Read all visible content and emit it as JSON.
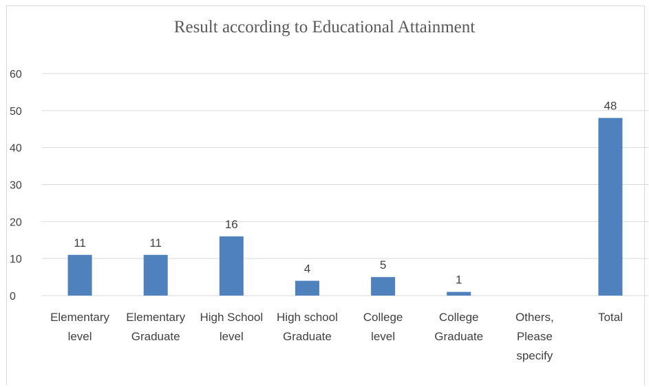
{
  "chart_data": {
    "type": "bar",
    "title": "Result according to Educational Attainment",
    "categories": [
      [
        "Elementary",
        "level"
      ],
      [
        "Elementary",
        "Graduate"
      ],
      [
        "High School",
        "level"
      ],
      [
        "High school",
        "Graduate"
      ],
      [
        "College",
        "level"
      ],
      [
        "College",
        "Graduate"
      ],
      [
        "Others,",
        "Please",
        "specify"
      ],
      [
        "Total"
      ]
    ],
    "values": [
      11,
      11,
      16,
      4,
      5,
      1,
      null,
      48
    ],
    "data_labels": [
      "11",
      "11",
      "16",
      "4",
      "5",
      "1",
      "",
      "48"
    ],
    "yticks": [
      "0",
      "10",
      "20",
      "30",
      "40",
      "50",
      "60"
    ],
    "ylim": [
      0,
      60
    ],
    "grid": true,
    "bar_color": "#4f81bd",
    "grid_color": "#d9d9d9"
  }
}
